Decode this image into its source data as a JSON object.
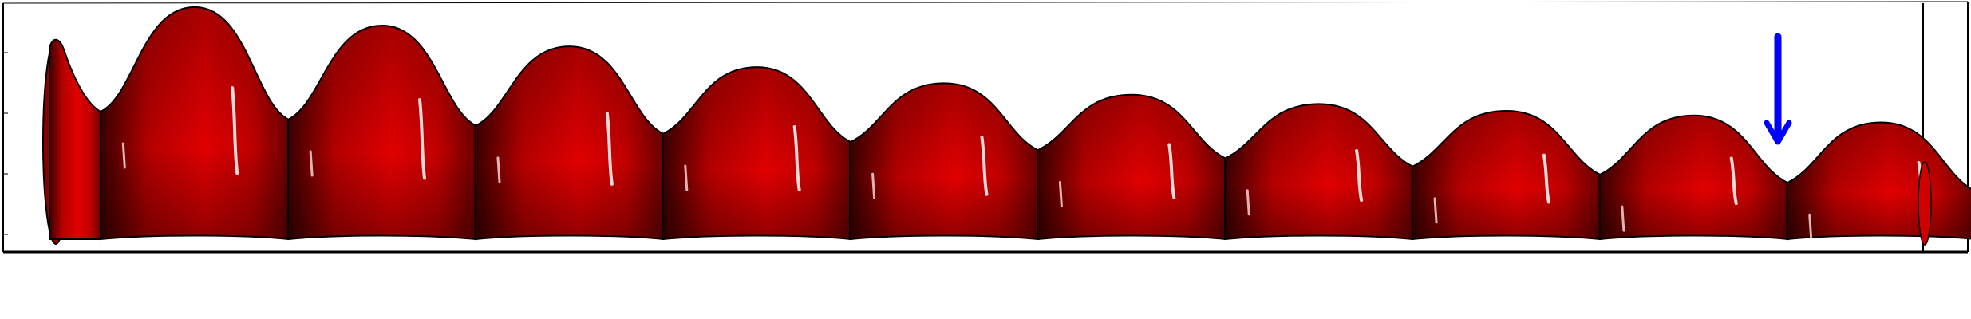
{
  "figure": {
    "background_color": "#ffffff",
    "frame_color": "#000000",
    "surface_colors": {
      "base": "#b30000",
      "light": "#ff1a1a",
      "dark": "#3a0000",
      "highlight": "#ffffff"
    },
    "bump_count": 10,
    "bump_relative_heights": [
      1.0,
      0.92,
      0.83,
      0.74,
      0.67,
      0.62,
      0.58,
      0.55,
      0.53,
      0.5
    ],
    "arrow": {
      "color": "#0000ff",
      "direction": "down",
      "semantic": "down-arrow-icon"
    }
  }
}
